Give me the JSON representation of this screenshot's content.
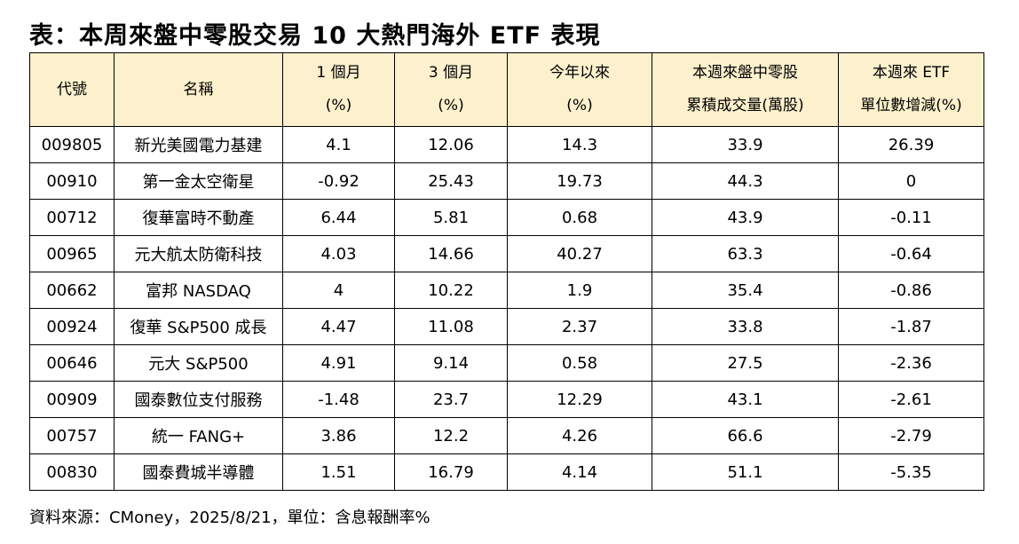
{
  "title": "表：本周來盤中零股交易 10 大熱門海外 ETF 表現",
  "table": {
    "headers": [
      {
        "line1": "代號",
        "line2": ""
      },
      {
        "line1": "名稱",
        "line2": ""
      },
      {
        "line1": "1 個月",
        "line2": "(%)"
      },
      {
        "line1": "3 個月",
        "line2": "(%)"
      },
      {
        "line1": "今年以來",
        "line2": "(%)"
      },
      {
        "line1": "本週來盤中零股",
        "line2": "累積成交量(萬股)"
      },
      {
        "line1": "本週來 ETF",
        "line2": "單位數增減(%)"
      }
    ],
    "rows": [
      [
        "009805",
        "新光美國電力基建",
        "4.1",
        "12.06",
        "14.3",
        "33.9",
        "26.39"
      ],
      [
        "00910",
        "第一金太空衛星",
        "-0.92",
        "25.43",
        "19.73",
        "44.3",
        "0"
      ],
      [
        "00712",
        "復華富時不動產",
        "6.44",
        "5.81",
        "0.68",
        "43.9",
        "-0.11"
      ],
      [
        "00965",
        "元大航太防衛科技",
        "4.03",
        "14.66",
        "40.27",
        "63.3",
        "-0.64"
      ],
      [
        "00662",
        "富邦 NASDAQ",
        "4",
        "10.22",
        "1.9",
        "35.4",
        "-0.86"
      ],
      [
        "00924",
        "復華 S&P500 成長",
        "4.47",
        "11.08",
        "2.37",
        "33.8",
        "-1.87"
      ],
      [
        "00646",
        "元大 S&P500",
        "4.91",
        "9.14",
        "0.58",
        "27.5",
        "-2.36"
      ],
      [
        "00909",
        "國泰數位支付服務",
        "-1.48",
        "23.7",
        "12.29",
        "43.1",
        "-2.61"
      ],
      [
        "00757",
        "統一 FANG+",
        "3.86",
        "12.2",
        "4.26",
        "66.6",
        "-2.79"
      ],
      [
        "00830",
        "國泰費城半導體",
        "1.51",
        "16.79",
        "4.14",
        "51.1",
        "-5.35"
      ]
    ]
  },
  "source": "資料來源：CMoney，2025/8/21，單位：含息報酬率%",
  "colors": {
    "header_bg": "#fdf0cc",
    "border": "#000000"
  }
}
